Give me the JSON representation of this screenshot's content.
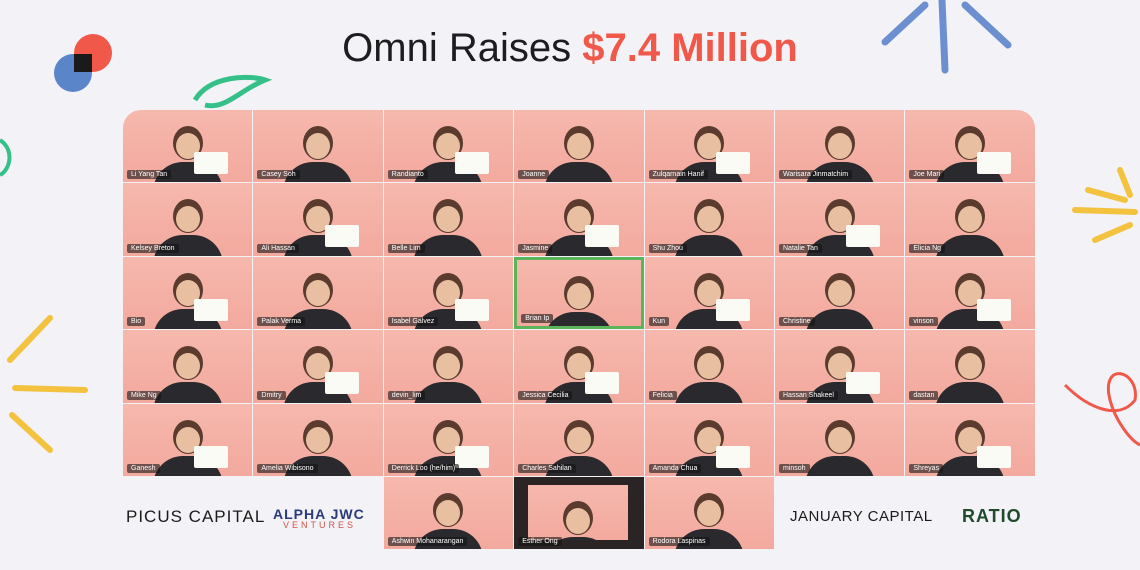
{
  "header": {
    "title": "Omni Raises",
    "highlight": "$7.4 Million"
  },
  "participants": {
    "rows": [
      [
        "Li Yang Tan",
        "Casey Soh",
        "Randianto",
        "Joanne",
        "Zulqarnain Hanif",
        "Warisara Jinmatchim",
        "Joe Mari"
      ],
      [
        "Kelsey Breton",
        "Ali Hassan",
        "Belle Lim",
        "Jasmine",
        "Shu Zhou",
        "Natalie Tan",
        "Elicia Ng"
      ],
      [
        "Bio",
        "Palak Verma",
        "Isabel Galvez",
        "Brian Ip",
        "Kun",
        "Christine",
        "vinson"
      ],
      [
        "Mike Ng",
        "Dmitry",
        "devin_lim",
        "Jessica Cecilia",
        "Felicia",
        "Hassan Shakeel",
        "dastan"
      ],
      [
        "Ganesh",
        "Amelia Wibisono",
        "Derrick Loo (he/him)",
        "Charles Sahilan",
        "Amanda Chua",
        "minsoh",
        "Shreyas"
      ],
      [
        "Ashwin Mohanarangan",
        "Esther Ong",
        "Rodora Laspinas"
      ]
    ]
  },
  "investors": {
    "picus": "PICUS CAPITAL",
    "alpha_top": "ALPHA JWC",
    "alpha_bottom": "VENTURES",
    "january": "JANUARY CAPITAL",
    "ratio": "RATIO"
  }
}
